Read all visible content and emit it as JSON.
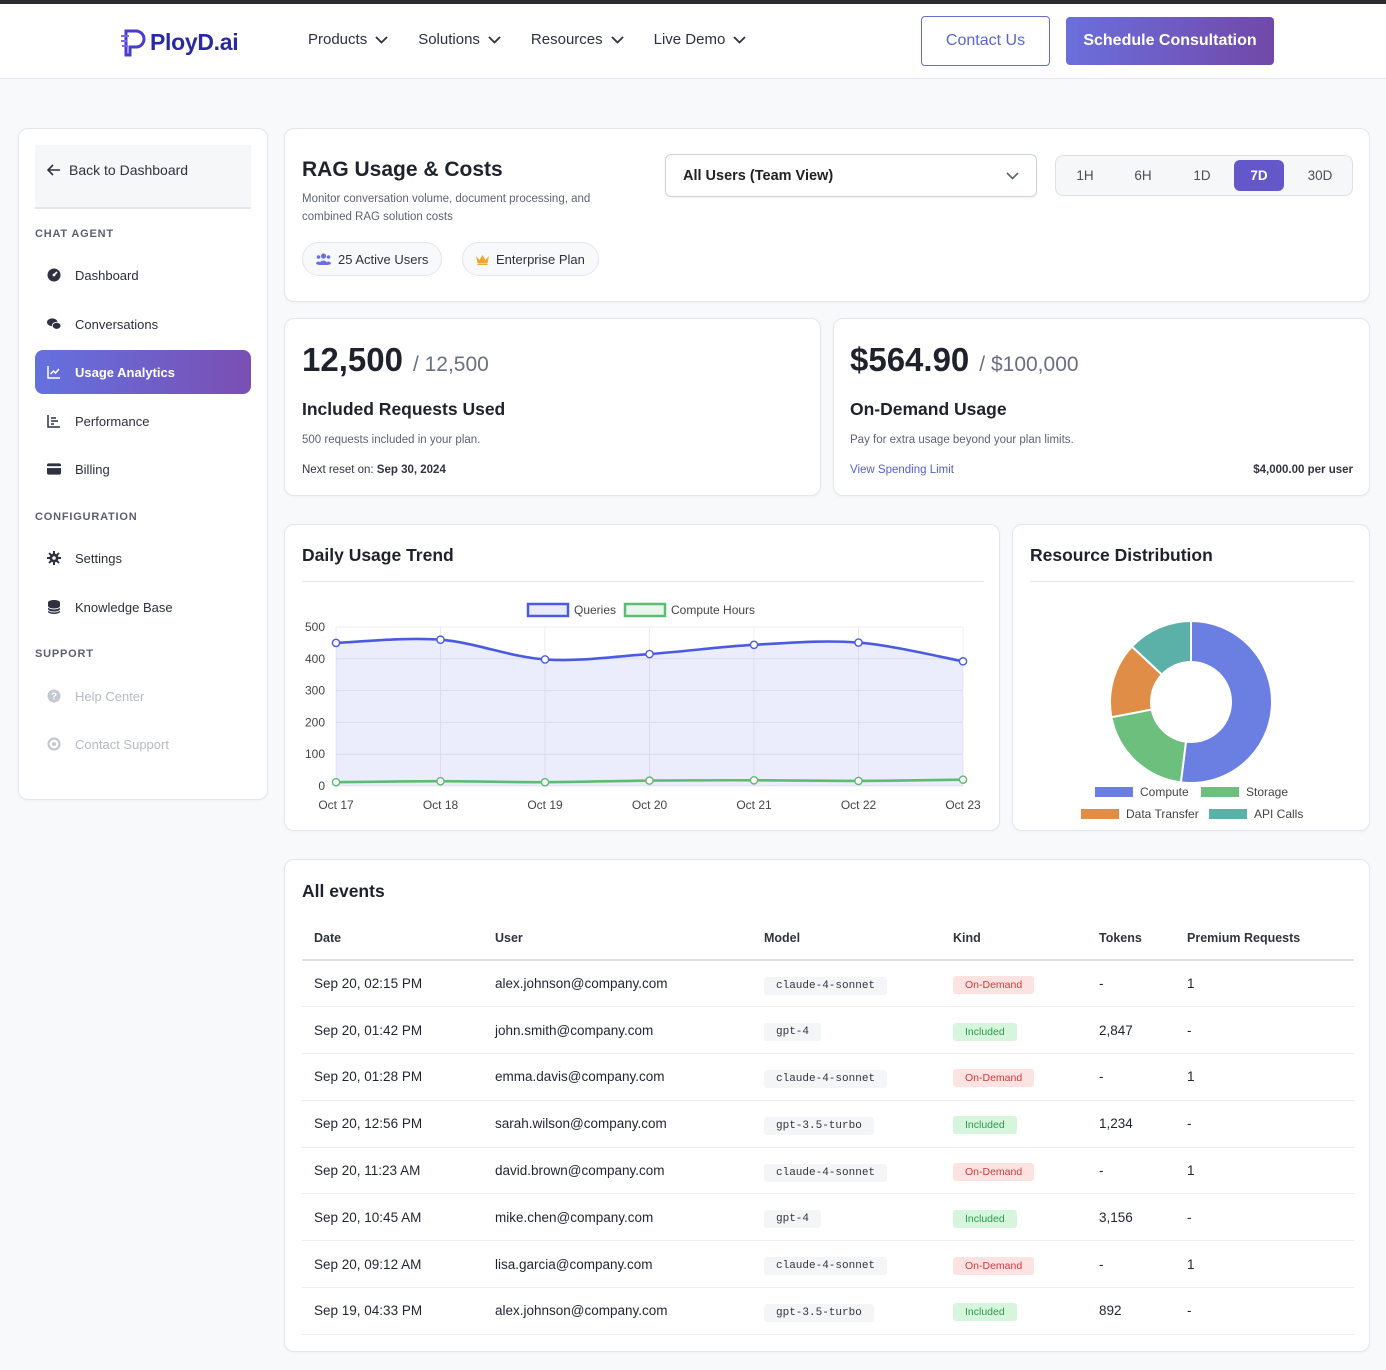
{
  "header": {
    "logo": "PloyD.ai",
    "nav": [
      {
        "label": "Products"
      },
      {
        "label": "Solutions"
      },
      {
        "label": "Resources"
      },
      {
        "label": "Live Demo"
      }
    ],
    "contact_label": "Contact Us",
    "schedule_label": "Schedule Consultation"
  },
  "sidebar": {
    "back_label": "Back to Dashboard",
    "section_chat": "CHAT AGENT",
    "section_config": "CONFIGURATION",
    "section_support": "SUPPORT",
    "items": {
      "dashboard": "Dashboard",
      "conversations": "Conversations",
      "usage": "Usage Analytics",
      "performance": "Performance",
      "billing": "Billing",
      "settings": "Settings",
      "knowledge": "Knowledge Base",
      "help": "Help Center",
      "support": "Contact Support"
    }
  },
  "overview": {
    "title": "RAG Usage & Costs",
    "description": "Monitor conversation volume, document processing, and combined RAG solution costs",
    "chip_users": "25 Active Users",
    "chip_plan": "Enterprise Plan",
    "user_select": "All Users (Team View)",
    "ranges": [
      "1H",
      "6H",
      "1D",
      "7D",
      "30D"
    ],
    "active_range": "7D"
  },
  "included": {
    "value": "12,500",
    "limit": "/ 12,500",
    "title": "Included Requests Used",
    "desc": "500 requests included in your plan.",
    "reset_label": "Next reset on:",
    "reset_date": "Sep 30, 2024"
  },
  "ondemand": {
    "value": "$564.90",
    "limit": "/ $100,000",
    "title": "On-Demand Usage",
    "desc": "Pay for extra usage beyond your plan limits.",
    "link": "View Spending Limit",
    "per_user": "$4,000.00 per user"
  },
  "colors": {
    "queries": "#4a5be0",
    "compute_hours": "#5dbb74",
    "compute": "#6b7fe3",
    "storage": "#6dbf7e",
    "data_transfer": "#e08e47",
    "api_calls": "#5bb1a8"
  },
  "chart_data": [
    {
      "type": "line",
      "title": "Daily Usage Trend",
      "categories": [
        "Oct 17",
        "Oct 18",
        "Oct 19",
        "Oct 20",
        "Oct 21",
        "Oct 22",
        "Oct 23"
      ],
      "series": [
        {
          "name": "Queries",
          "values": [
            450,
            460,
            398,
            415,
            444,
            451,
            392
          ]
        },
        {
          "name": "Compute Hours",
          "values": [
            12,
            15,
            12,
            17,
            18,
            16,
            20
          ]
        }
      ],
      "ylim": [
        0,
        500
      ],
      "yticks": [
        0,
        100,
        200,
        300,
        400,
        500
      ],
      "legend": "top"
    },
    {
      "type": "pie",
      "title": "Resource Distribution",
      "labels": [
        "Compute",
        "Storage",
        "Data Transfer",
        "API Calls"
      ],
      "values": [
        52,
        20,
        15,
        13
      ],
      "donut": true,
      "legend": "bottom"
    }
  ],
  "events": {
    "title": "All events",
    "columns": [
      "Date",
      "User",
      "Model",
      "Kind",
      "Tokens",
      "Premium Requests"
    ],
    "rows": [
      {
        "date": "Sep 20, 02:15 PM",
        "user": "alex.johnson@company.com",
        "model": "claude-4-sonnet",
        "kind": "On-Demand",
        "tokens": "-",
        "premium": "1"
      },
      {
        "date": "Sep 20, 01:42 PM",
        "user": "john.smith@company.com",
        "model": "gpt-4",
        "kind": "Included",
        "tokens": "2,847",
        "premium": "-"
      },
      {
        "date": "Sep 20, 01:28 PM",
        "user": "emma.davis@company.com",
        "model": "claude-4-sonnet",
        "kind": "On-Demand",
        "tokens": "-",
        "premium": "1"
      },
      {
        "date": "Sep 20, 12:56 PM",
        "user": "sarah.wilson@company.com",
        "model": "gpt-3.5-turbo",
        "kind": "Included",
        "tokens": "1,234",
        "premium": "-"
      },
      {
        "date": "Sep 20, 11:23 AM",
        "user": "david.brown@company.com",
        "model": "claude-4-sonnet",
        "kind": "On-Demand",
        "tokens": "-",
        "premium": "1"
      },
      {
        "date": "Sep 20, 10:45 AM",
        "user": "mike.chen@company.com",
        "model": "gpt-4",
        "kind": "Included",
        "tokens": "3,156",
        "premium": "-"
      },
      {
        "date": "Sep 20, 09:12 AM",
        "user": "lisa.garcia@company.com",
        "model": "claude-4-sonnet",
        "kind": "On-Demand",
        "tokens": "-",
        "premium": "1"
      },
      {
        "date": "Sep 19, 04:33 PM",
        "user": "alex.johnson@company.com",
        "model": "gpt-3.5-turbo",
        "kind": "Included",
        "tokens": "892",
        "premium": "-"
      }
    ]
  }
}
